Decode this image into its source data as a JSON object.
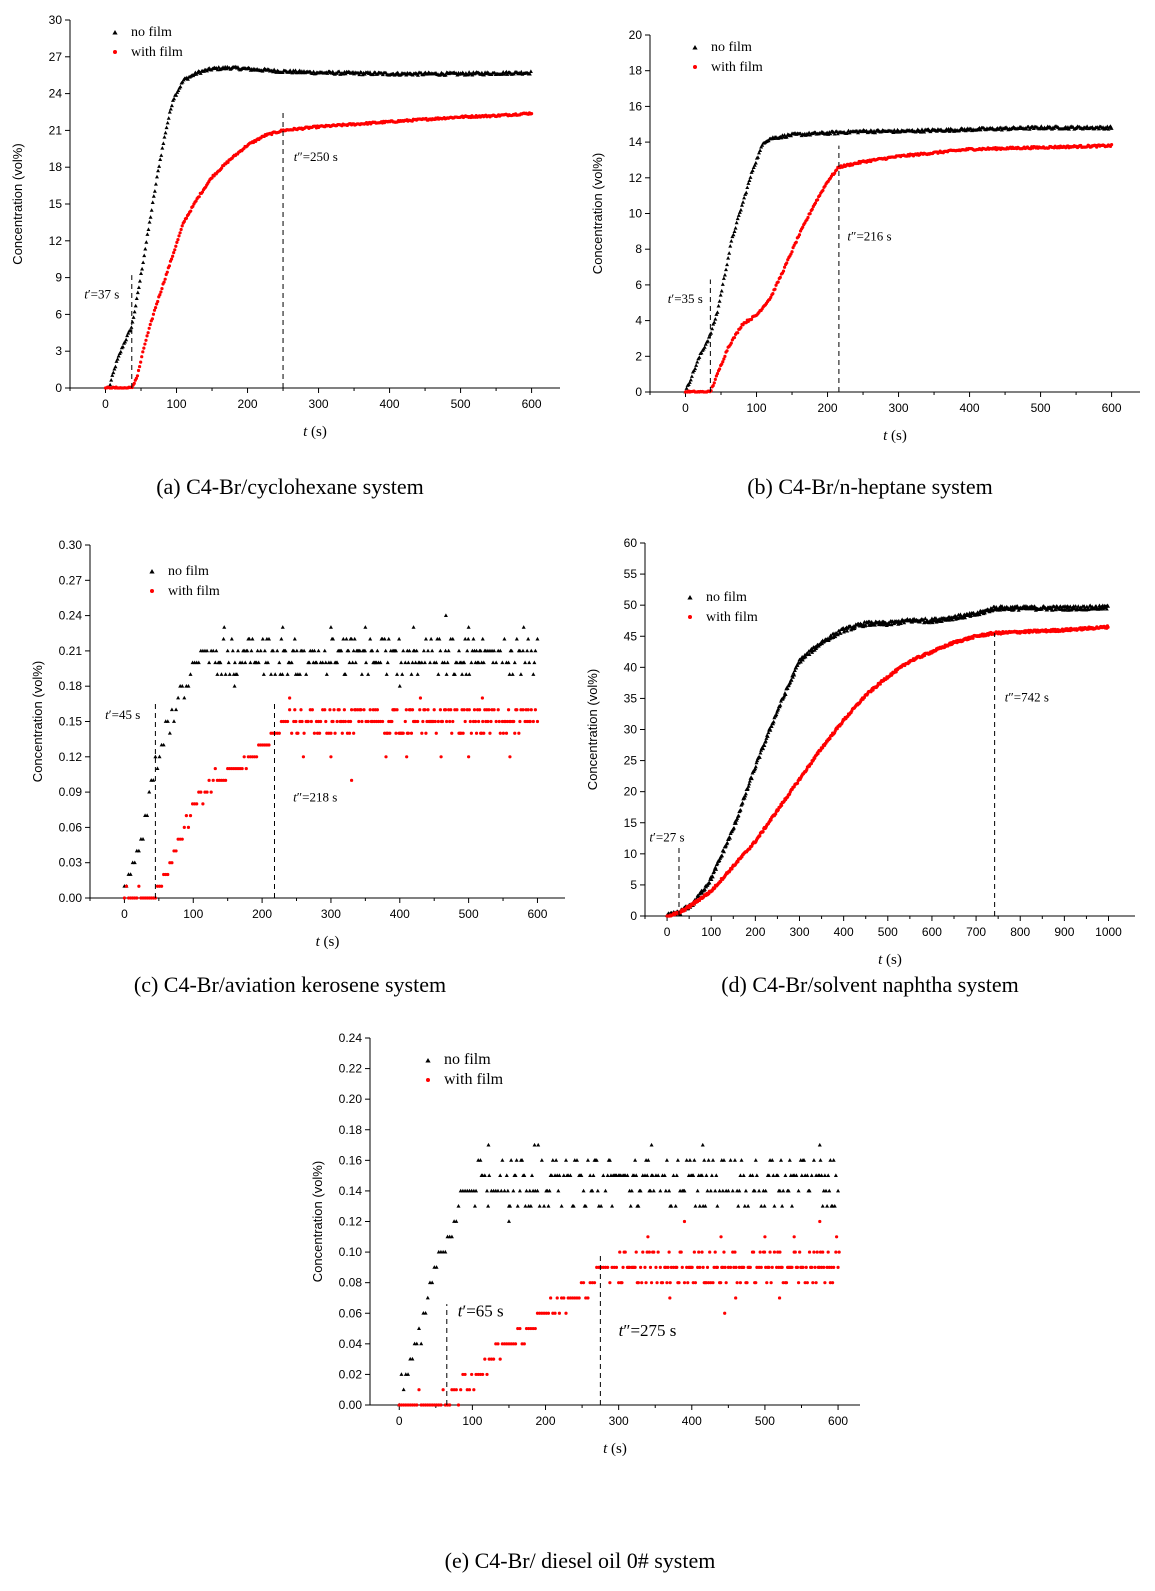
{
  "colors": {
    "no_film": "#000000",
    "with_film": "#ff0000"
  },
  "chart_data": [
    {
      "id": "a",
      "type": "scatter",
      "caption": "(a) C4-Br/cyclohexane system",
      "xlabel": "t (s)",
      "ylabel": "Concentration (vol%)",
      "xlim": [
        -50,
        640
      ],
      "ylim": [
        0,
        30
      ],
      "xticks": [
        0,
        100,
        200,
        300,
        400,
        500,
        600
      ],
      "yticks": [
        0,
        3,
        6,
        9,
        12,
        15,
        18,
        21,
        24,
        27,
        30
      ],
      "tick_decimals": 0,
      "legend": [
        "no film",
        "with film"
      ],
      "series": [
        {
          "name": "no film",
          "marker": "triangle",
          "x": [
            5,
            15,
            25,
            37,
            45,
            55,
            65,
            75,
            85,
            95,
            110,
            130,
            150,
            175,
            200,
            250,
            300,
            400,
            500,
            600
          ],
          "y": [
            0,
            2,
            3.5,
            5,
            7.5,
            11,
            14.5,
            18,
            21,
            23.5,
            25.1,
            25.7,
            26,
            26.1,
            26,
            25.8,
            25.7,
            25.6,
            25.6,
            25.7
          ],
          "jitter": 0.12
        },
        {
          "name": "with film",
          "marker": "dot",
          "x": [
            0,
            37,
            45,
            55,
            70,
            90,
            110,
            130,
            150,
            175,
            200,
            225,
            250,
            300,
            350,
            400,
            450,
            500,
            550,
            600
          ],
          "y": [
            0,
            0,
            1,
            3.5,
            6.5,
            10,
            13.5,
            15.5,
            17.2,
            18.6,
            19.8,
            20.6,
            21,
            21.3,
            21.5,
            21.7,
            21.9,
            22.1,
            22.2,
            22.4
          ],
          "jitter": 0.08
        }
      ],
      "annotations": [
        {
          "label": "t′=37 s",
          "x": 37,
          "y_top": 9.2,
          "label_x": -30,
          "label_y": 7.3
        },
        {
          "label": "t″=250 s",
          "x": 250,
          "y_top": 22.7,
          "label_x": 265,
          "label_y": 18.5
        }
      ]
    },
    {
      "id": "b",
      "type": "scatter",
      "caption": "(b) C4-Br/n-heptane system",
      "xlabel": "t (s)",
      "ylabel": "Concentration (vol%)",
      "xlim": [
        -50,
        640
      ],
      "ylim": [
        0,
        20
      ],
      "xticks": [
        0,
        100,
        200,
        300,
        400,
        500,
        600
      ],
      "yticks": [
        0,
        2,
        4,
        6,
        8,
        10,
        12,
        14,
        16,
        18,
        20
      ],
      "tick_decimals": 0,
      "legend": [
        "no film",
        "with film"
      ],
      "series": [
        {
          "name": "no film",
          "marker": "triangle",
          "x": [
            0,
            10,
            20,
            35,
            45,
            55,
            65,
            80,
            95,
            110,
            120,
            150,
            200,
            250,
            300,
            400,
            500,
            600
          ],
          "y": [
            0,
            1,
            2,
            3.2,
            4.5,
            6.5,
            8.5,
            10.5,
            12.5,
            14,
            14.2,
            14.4,
            14.5,
            14.6,
            14.6,
            14.7,
            14.8,
            14.8
          ],
          "jitter": 0.08
        },
        {
          "name": "with film",
          "marker": "dot",
          "x": [
            0,
            35,
            45,
            60,
            80,
            100,
            120,
            140,
            160,
            180,
            200,
            216,
            250,
            300,
            400,
            500,
            600
          ],
          "y": [
            0,
            0,
            1,
            2.5,
            3.8,
            4.3,
            5.3,
            7,
            8.8,
            10.4,
            11.8,
            12.6,
            12.9,
            13.2,
            13.6,
            13.7,
            13.8
          ],
          "jitter": 0.06
        }
      ],
      "annotations": [
        {
          "label": "t′=35 s",
          "x": 35,
          "y_top": 6.3,
          "label_x": -25,
          "label_y": 5
        },
        {
          "label": "t″=216 s",
          "x": 216,
          "y_top": 13.8,
          "label_x": 228,
          "label_y": 8.5
        }
      ]
    },
    {
      "id": "c",
      "type": "scatter",
      "caption": "(c) C4-Br/aviation kerosene system",
      "xlabel": "t (s)",
      "ylabel": "Concentration (vol%)",
      "xlim": [
        -50,
        640
      ],
      "ylim": [
        0,
        0.3
      ],
      "xticks": [
        0,
        100,
        200,
        300,
        400,
        500,
        600
      ],
      "yticks": [
        0,
        0.03,
        0.06,
        0.09,
        0.12,
        0.15,
        0.18,
        0.21,
        0.24,
        0.27,
        0.3
      ],
      "tick_decimals": 2,
      "legend": [
        "no film",
        "with film"
      ],
      "series": [
        {
          "name": "no film",
          "marker": "triangle",
          "quantized": true,
          "step": 0.01,
          "x": [
            0,
            20,
            45,
            60,
            80,
            95,
            110,
            130,
            600
          ],
          "y": [
            0.01,
            0.04,
            0.11,
            0.14,
            0.17,
            0.19,
            0.21,
            0.21,
            0.21
          ],
          "spread": [
            0.19,
            0.22
          ],
          "extra": [
            [
              145,
              0.23
            ],
            [
              230,
              0.23
            ],
            [
              300,
              0.23
            ],
            [
              350,
              0.23
            ],
            [
              420,
              0.23
            ],
            [
              467,
              0.24
            ],
            [
              500,
              0.23
            ],
            [
              580,
              0.23
            ],
            [
              400,
              0.18
            ],
            [
              160,
              0.18
            ]
          ]
        },
        {
          "name": "with film",
          "marker": "dot",
          "quantized": true,
          "step": 0.01,
          "x": [
            0,
            45,
            60,
            80,
            100,
            130,
            160,
            190,
            218,
            240,
            600
          ],
          "y": [
            0,
            0,
            0.02,
            0.05,
            0.08,
            0.1,
            0.11,
            0.12,
            0.14,
            0.15,
            0.15
          ],
          "spread": [
            0.14,
            0.16
          ],
          "extra": [
            [
              260,
              0.12
            ],
            [
              300,
              0.12
            ],
            [
              330,
              0.1
            ],
            [
              380,
              0.12
            ],
            [
              410,
              0.12
            ],
            [
              460,
              0.12
            ],
            [
              500,
              0.12
            ],
            [
              560,
              0.12
            ],
            [
              240,
              0.17
            ],
            [
              430,
              0.17
            ],
            [
              520,
              0.17
            ]
          ]
        }
      ],
      "annotations": [
        {
          "label": "t′=45 s",
          "x": 45,
          "y_top": 0.165,
          "label_x": -28,
          "label_y": 0.152
        },
        {
          "label": "t″=218 s",
          "x": 218,
          "y_top": 0.165,
          "label_x": 245,
          "label_y": 0.082
        }
      ]
    },
    {
      "id": "d",
      "type": "scatter",
      "caption": "(d) C4-Br/solvent naphtha system",
      "xlabel": "t (s)",
      "ylabel": "Concentration (vol%)",
      "xlim": [
        -50,
        1060
      ],
      "ylim": [
        0,
        60
      ],
      "xticks": [
        0,
        100,
        200,
        300,
        400,
        500,
        600,
        700,
        800,
        900,
        1000
      ],
      "yticks": [
        0,
        5,
        10,
        15,
        20,
        25,
        30,
        35,
        40,
        45,
        50,
        55,
        60
      ],
      "tick_decimals": 0,
      "legend": [
        "no film",
        "with film"
      ],
      "series": [
        {
          "name": "no film",
          "marker": "triangle",
          "x": [
            0,
            27,
            60,
            100,
            150,
            200,
            250,
            300,
            350,
            400,
            450,
            500,
            550,
            600,
            650,
            700,
            742,
            800,
            900,
            1000
          ],
          "y": [
            0,
            0.5,
            2,
            6,
            14,
            24,
            33,
            41,
            44,
            46,
            47,
            47,
            47.5,
            47.5,
            48,
            48.5,
            49.5,
            49.5,
            49.5,
            49.6
          ],
          "jitter": 0.35
        },
        {
          "name": "with film",
          "marker": "dot",
          "x": [
            0,
            27,
            50,
            100,
            150,
            200,
            250,
            300,
            350,
            400,
            450,
            500,
            550,
            600,
            650,
            700,
            742,
            800,
            900,
            1000
          ],
          "y": [
            0,
            0.5,
            1.5,
            4,
            8,
            12,
            17,
            22,
            27,
            31.5,
            35.5,
            38.5,
            41,
            42.5,
            44,
            45,
            45.5,
            45.7,
            46,
            46.5
          ],
          "jitter": 0.2
        }
      ],
      "annotations": [
        {
          "label": "t′=27 s",
          "x": 27,
          "y_top": 11,
          "label_x": -40,
          "label_y": 12
        },
        {
          "label": "t″=742 s",
          "x": 742,
          "y_top": 45.5,
          "label_x": 765,
          "label_y": 34.5
        }
      ]
    },
    {
      "id": "e",
      "type": "scatter",
      "caption": "(e) C4-Br/ diesel oil 0# system",
      "xlabel": "t (s)",
      "ylabel": "Concentration (vol%)",
      "xlim": [
        -40,
        630
      ],
      "ylim": [
        0,
        0.24
      ],
      "xticks": [
        0,
        100,
        200,
        300,
        400,
        500,
        600
      ],
      "yticks": [
        0,
        0.02,
        0.04,
        0.06,
        0.08,
        0.1,
        0.12,
        0.14,
        0.16,
        0.18,
        0.2,
        0.22,
        0.24
      ],
      "tick_decimals": 2,
      "legend": [
        "no film",
        "with film"
      ],
      "series": [
        {
          "name": "no film",
          "marker": "triangle",
          "quantized": true,
          "step": 0.01,
          "x": [
            0,
            15,
            30,
            45,
            60,
            75,
            90,
            100,
            600
          ],
          "y": [
            0.01,
            0.03,
            0.05,
            0.08,
            0.1,
            0.12,
            0.14,
            0.14,
            0.14
          ],
          "spread": [
            0.13,
            0.16
          ],
          "extra": [
            [
              122,
              0.17
            ],
            [
              185,
              0.17
            ],
            [
              190,
              0.17
            ],
            [
              345,
              0.17
            ],
            [
              415,
              0.17
            ],
            [
              575,
              0.17
            ],
            [
              150,
              0.12
            ]
          ]
        },
        {
          "name": "with film",
          "marker": "dot",
          "quantized": true,
          "step": 0.01,
          "x": [
            0,
            65,
            70,
            100,
            120,
            150,
            170,
            200,
            230,
            260,
            275,
            300,
            600
          ],
          "y": [
            0,
            0,
            0.01,
            0.01,
            0.03,
            0.04,
            0.05,
            0.06,
            0.07,
            0.08,
            0.09,
            0.09,
            0.09
          ],
          "spread": [
            0.08,
            0.1
          ],
          "extra": [
            [
              340,
              0.11
            ],
            [
              390,
              0.12
            ],
            [
              440,
              0.11
            ],
            [
              445,
              0.06
            ],
            [
              500,
              0.11
            ],
            [
              540,
              0.11
            ],
            [
              575,
              0.12
            ],
            [
              598,
              0.11
            ],
            [
              370,
              0.07
            ],
            [
              460,
              0.07
            ],
            [
              520,
              0.07
            ]
          ]
        }
      ],
      "annotations": [
        {
          "label": "t′=65 s",
          "x": 65,
          "y_top": 0.066,
          "label_x": 80,
          "label_y": 0.058
        },
        {
          "label": "t″=275 s",
          "x": 275,
          "y_top": 0.1,
          "label_x": 300,
          "label_y": 0.045
        }
      ]
    }
  ]
}
